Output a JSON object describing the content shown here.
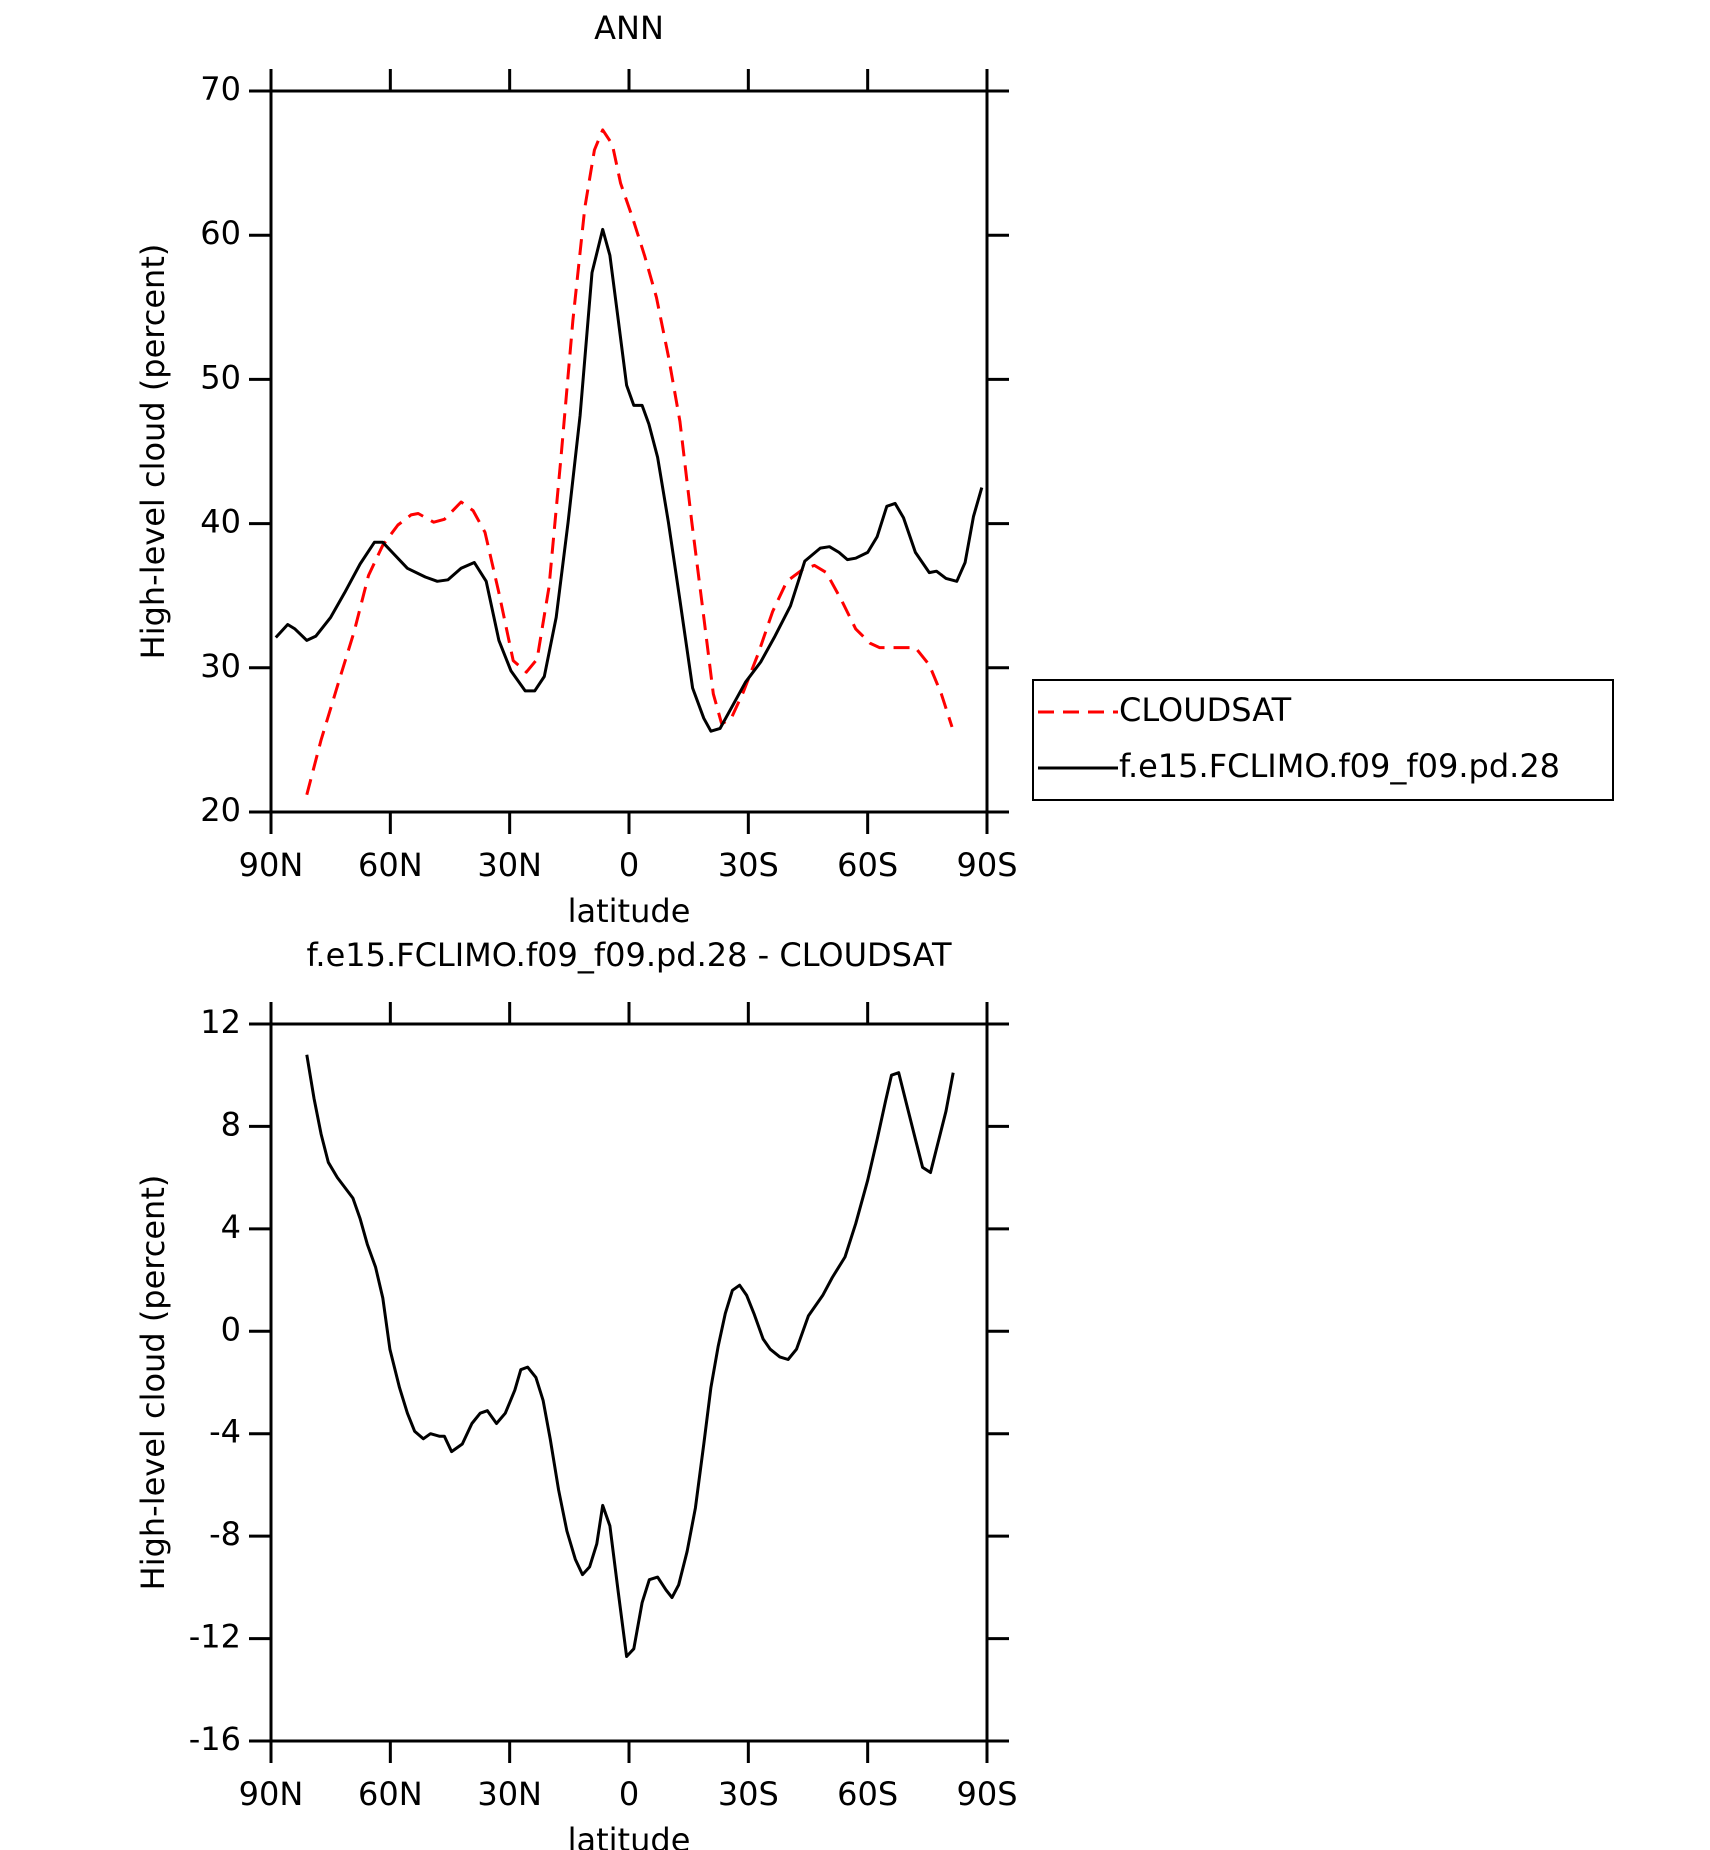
{
  "chart_data": [
    {
      "type": "line",
      "title": "ANN",
      "x_label": "latitude",
      "y_label": "High-level cloud (percent)",
      "xlim": [
        90,
        -90
      ],
      "xticks": [
        {
          "value": 90,
          "label": "90N"
        },
        {
          "value": 60,
          "label": "60N"
        },
        {
          "value": 30,
          "label": "30N"
        },
        0,
        {
          "value": -30,
          "label": "30S"
        },
        {
          "value": -60,
          "label": "60S"
        },
        {
          "value": -90,
          "label": "90S"
        }
      ],
      "ylim": [
        20,
        70
      ],
      "yticks": [
        20,
        30,
        40,
        50,
        60,
        70
      ],
      "legend": "outside right",
      "series": [
        {
          "name": "CLOUDSAT",
          "color": "#ff0000",
          "dash": true,
          "x": [
            81.0,
            77.4,
            73.0,
            69.1,
            65.5,
            61.9,
            58.1,
            54.8,
            53.0,
            49.1,
            46.4,
            42.2,
            39.2,
            36.2,
            32.7,
            29.1,
            25.8,
            23.1,
            20.1,
            17.1,
            14.1,
            11.1,
            8.7,
            6.6,
            4.2,
            2.1,
            -0.9,
            -3.9,
            -6.9,
            -9.9,
            -12.8,
            -15.8,
            -18.8,
            -21.2,
            -23.3,
            -25.7,
            -28.7,
            -32.5,
            -36.1,
            -39.7,
            -43.6,
            -46.6,
            -49.6,
            -53.4,
            -57.0,
            -60.6,
            -63.0,
            -67.5,
            -72.0,
            -75.5,
            -78.5,
            -81.2
          ],
          "values": [
            21.2,
            25.0,
            29.0,
            32.5,
            36.4,
            38.5,
            39.9,
            40.6,
            40.7,
            40.1,
            40.3,
            41.5,
            40.9,
            39.4,
            35.2,
            30.5,
            29.7,
            30.6,
            35.6,
            44.6,
            54.1,
            61.9,
            65.9,
            67.3,
            66.3,
            63.6,
            61.2,
            58.6,
            55.7,
            51.6,
            47.1,
            40.1,
            33.5,
            28.2,
            26.1,
            26.5,
            28.3,
            31.0,
            33.9,
            36.0,
            36.8,
            37.1,
            36.6,
            34.7,
            32.7,
            31.7,
            31.4,
            31.4,
            31.4,
            30.2,
            28.2,
            25.9
          ]
        },
        {
          "name": "f.e15.FCLIMO.f09_f09.pd.28",
          "color": "#000000",
          "dash": false,
          "x": [
            88.8,
            85.8,
            84.0,
            81.0,
            78.7,
            75.0,
            71.5,
            67.6,
            64.0,
            61.9,
            59.5,
            55.7,
            51.2,
            48.2,
            45.5,
            42.2,
            38.9,
            35.9,
            32.7,
            29.7,
            26.1,
            23.7,
            21.3,
            18.3,
            15.3,
            12.3,
            9.3,
            6.6,
            4.8,
            2.7,
            0.6,
            -1.2,
            -3.3,
            -5.0,
            -7.2,
            -9.9,
            -12.8,
            -16.0,
            -18.8,
            -20.6,
            -22.9,
            -25.7,
            -29.3,
            -33.1,
            -36.7,
            -40.6,
            -44.2,
            -48.1,
            -50.4,
            -52.8,
            -54.9,
            -57.0,
            -60.0,
            -62.4,
            -64.8,
            -66.9,
            -69.0,
            -72.0,
            -75.5,
            -77.3,
            -79.7,
            -82.4,
            -84.5,
            -86.6,
            -88.7
          ],
          "values": [
            32.1,
            33.0,
            32.7,
            31.9,
            32.2,
            33.5,
            35.2,
            37.2,
            38.7,
            38.7,
            38.0,
            36.9,
            36.3,
            36.0,
            36.1,
            36.9,
            37.3,
            36.0,
            31.9,
            29.8,
            28.4,
            28.4,
            29.4,
            33.5,
            40.1,
            47.5,
            57.4,
            60.4,
            58.6,
            54.1,
            49.6,
            48.2,
            48.2,
            46.9,
            44.6,
            40.1,
            34.7,
            28.6,
            26.5,
            25.6,
            25.8,
            27.2,
            29.0,
            30.4,
            32.2,
            34.3,
            37.4,
            38.3,
            38.4,
            38.0,
            37.5,
            37.6,
            38.0,
            39.1,
            41.2,
            41.4,
            40.4,
            38.0,
            36.6,
            36.7,
            36.2,
            36.0,
            37.3,
            40.5,
            42.5
          ]
        }
      ]
    },
    {
      "type": "line",
      "title": "f.e15.FCLIMO.f09_f09.pd.28 - CLOUDSAT",
      "x_label": "latitude",
      "y_label": "High-level cloud (percent)",
      "xlim": [
        90,
        -90
      ],
      "xticks": [
        {
          "value": 90,
          "label": "90N"
        },
        {
          "value": 60,
          "label": "60N"
        },
        {
          "value": 30,
          "label": "30N"
        },
        0,
        {
          "value": -30,
          "label": "30S"
        },
        {
          "value": -60,
          "label": "60S"
        },
        {
          "value": -90,
          "label": "90S"
        }
      ],
      "ylim": [
        -16,
        12
      ],
      "yticks": [
        -16,
        -12,
        -8,
        -4,
        0,
        4,
        8,
        12
      ],
      "series": [
        {
          "color": "#000000",
          "dash": false,
          "x": [
            81.0,
            79.2,
            77.4,
            75.6,
            73.3,
            69.4,
            67.6,
            65.8,
            63.7,
            61.9,
            60.1,
            57.7,
            55.7,
            53.9,
            51.7,
            49.9,
            47.6,
            46.4,
            44.6,
            41.9,
            39.5,
            37.4,
            35.6,
            33.3,
            31.1,
            28.7,
            27.2,
            25.5,
            23.4,
            21.6,
            19.8,
            17.7,
            15.6,
            13.5,
            11.7,
            9.9,
            8.1,
            6.6,
            4.8,
            2.7,
            0.6,
            -1.2,
            -3.3,
            -5.1,
            -7.2,
            -9.3,
            -10.8,
            -12.5,
            -14.6,
            -16.7,
            -18.8,
            -20.6,
            -22.4,
            -24.2,
            -26.0,
            -27.8,
            -29.6,
            -31.4,
            -33.7,
            -35.5,
            -37.9,
            -40.0,
            -42.1,
            -45.1,
            -48.7,
            -51.1,
            -54.3,
            -57.0,
            -60.0,
            -62.4,
            -64.5,
            -66.0,
            -67.8,
            -69.9,
            -72.0,
            -73.8,
            -75.8,
            -77.9,
            -79.7,
            -81.5
          ],
          "values": [
            10.8,
            9.1,
            7.7,
            6.6,
            6.0,
            5.2,
            4.4,
            3.4,
            2.5,
            1.3,
            -0.7,
            -2.2,
            -3.2,
            -3.9,
            -4.2,
            -4.0,
            -4.1,
            -4.1,
            -4.7,
            -4.4,
            -3.6,
            -3.2,
            -3.1,
            -3.6,
            -3.2,
            -2.3,
            -1.5,
            -1.4,
            -1.8,
            -2.7,
            -4.2,
            -6.2,
            -7.8,
            -8.9,
            -9.5,
            -9.2,
            -8.3,
            -6.8,
            -7.6,
            -10.2,
            -12.7,
            -12.4,
            -10.6,
            -9.7,
            -9.6,
            -10.1,
            -10.4,
            -9.9,
            -8.6,
            -6.9,
            -4.4,
            -2.2,
            -0.6,
            0.7,
            1.6,
            1.8,
            1.4,
            0.7,
            -0.3,
            -0.7,
            -1.0,
            -1.1,
            -0.7,
            0.6,
            1.4,
            2.1,
            2.9,
            4.2,
            5.9,
            7.5,
            9.0,
            10.0,
            10.1,
            8.8,
            7.5,
            6.4,
            6.2,
            7.5,
            8.6,
            10.1
          ]
        }
      ]
    }
  ]
}
